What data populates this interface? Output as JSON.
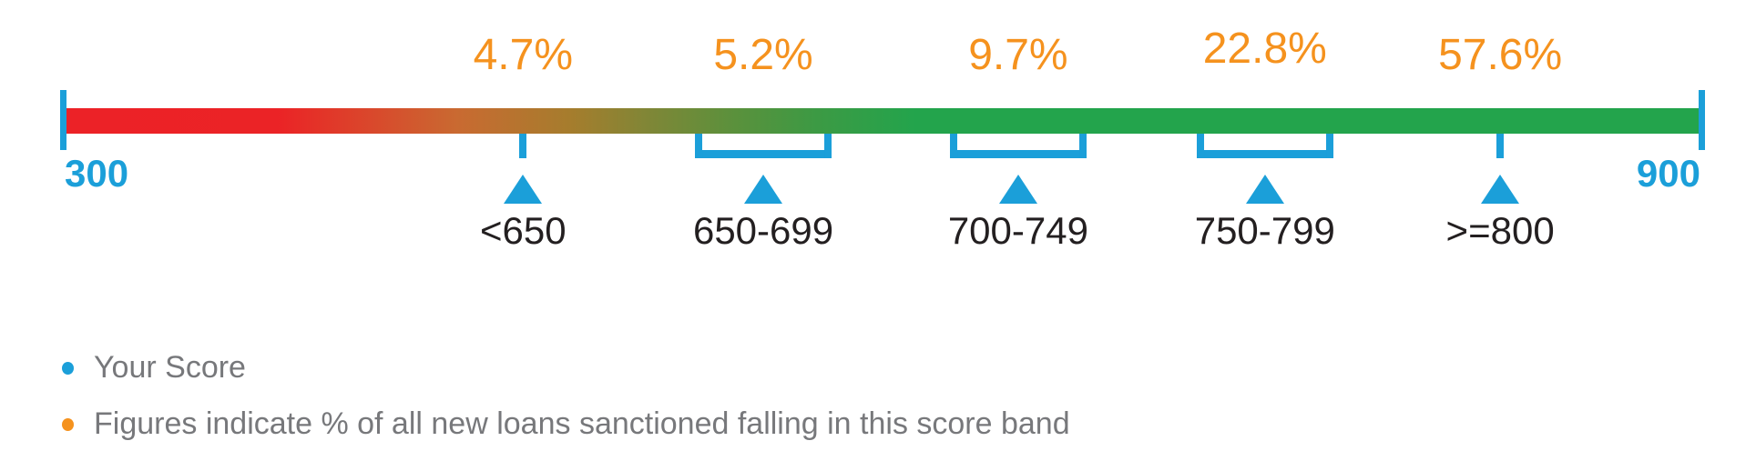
{
  "chart_data": {
    "type": "scale",
    "title": "",
    "description": "Credit score scale from 300 to 900 with red-to-green gradient, five score bands marked with blue pointers, and the share of new loans sanctioned in each band shown in orange",
    "categories": [
      "<650",
      "650-699",
      "700-749",
      "750-799",
      ">=800"
    ],
    "values": [
      4.7,
      5.2,
      9.7,
      22.8,
      57.6
    ],
    "value_unit": "% of all new loans sanctioned",
    "axis": {
      "min": 300,
      "max": 900,
      "min_label": "300",
      "max_label": "900"
    },
    "bands": [
      {
        "label": "<650",
        "share_label": "4.7%",
        "marker": "tick",
        "center_pct": 28.0,
        "label_dy": 0
      },
      {
        "label": "650-699",
        "share_label": "5.2%",
        "marker": "bracket",
        "center_pct": 42.7,
        "bracket_width_pct": 8.36,
        "label_dy": 0
      },
      {
        "label": "700-749",
        "share_label": "9.7%",
        "marker": "bracket",
        "center_pct": 58.3,
        "bracket_width_pct": 8.36,
        "label_dy": 0
      },
      {
        "label": "750-799",
        "share_label": "22.8%",
        "marker": "bracket",
        "center_pct": 73.4,
        "bracket_width_pct": 8.36,
        "label_dy": -7
      },
      {
        "label": ">=800",
        "share_label": "57.6%",
        "marker": "tick",
        "center_pct": 87.8,
        "label_dy": 0
      }
    ],
    "gradient_stops": [
      {
        "color": "#ec2227",
        "pos": 0
      },
      {
        "color": "#eb2326",
        "pos": 13
      },
      {
        "color": "#c96a31",
        "pos": 24
      },
      {
        "color": "#a57d2d",
        "pos": 31
      },
      {
        "color": "#7d8737",
        "pos": 36
      },
      {
        "color": "#5a913c",
        "pos": 41
      },
      {
        "color": "#3c9a44",
        "pos": 46
      },
      {
        "color": "#23a44c",
        "pos": 52
      },
      {
        "color": "#23a44c",
        "pos": 100
      }
    ],
    "legend": [
      {
        "bullet_color": "#1b9fd9",
        "text": "Your Score"
      },
      {
        "bullet_color": "#f5921e",
        "text": "Figures indicate % of all new loans sanctioned falling in this score band"
      }
    ],
    "colors": {
      "marker_blue": "#1b9fd9",
      "pct_orange": "#f5921e",
      "band_label_black": "#231f20",
      "legend_gray": "#77787b"
    },
    "layout": {
      "legend_position": "bottom-left",
      "grid": false
    }
  }
}
